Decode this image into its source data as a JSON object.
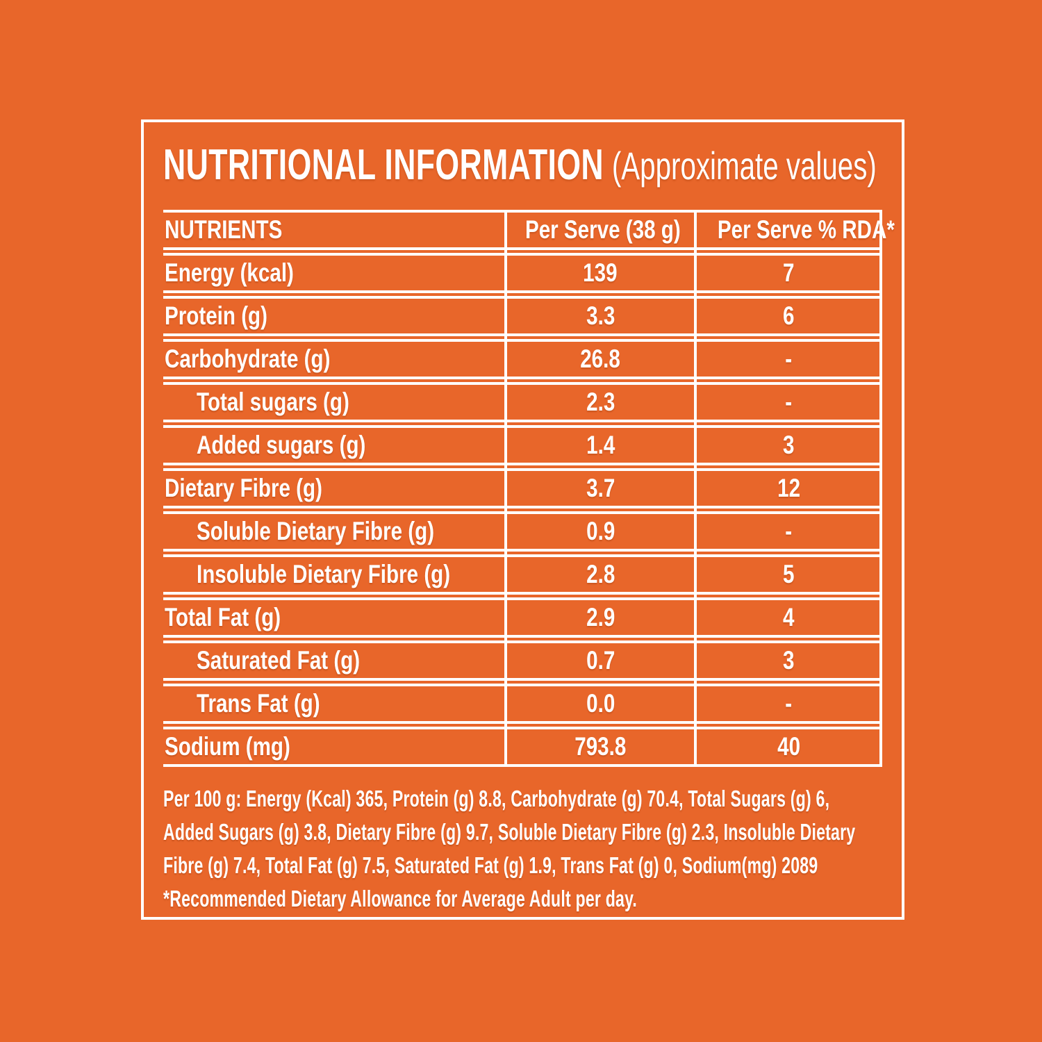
{
  "page": {
    "background_color": "#E8662A",
    "text_color": "#FFFFFF",
    "line_color": "#FFFFFF"
  },
  "title": {
    "main": "NUTRITIONAL INFORMATION",
    "sub": "(Approximate values)"
  },
  "table": {
    "headers": {
      "nutrients": "NUTRIENTS",
      "per_serve": "Per Serve (38 g)",
      "per_serve_rda": "Per Serve % RDA*"
    },
    "rows": [
      {
        "label": "Energy (kcal)",
        "per_serve": "139",
        "rda": "7",
        "indent": false
      },
      {
        "label": "Protein (g)",
        "per_serve": "3.3",
        "rda": "6",
        "indent": false
      },
      {
        "label": "Carbohydrate (g)",
        "per_serve": "26.8",
        "rda": "-",
        "indent": false
      },
      {
        "label": "Total sugars (g)",
        "per_serve": "2.3",
        "rda": "-",
        "indent": true
      },
      {
        "label": "Added sugars (g)",
        "per_serve": "1.4",
        "rda": "3",
        "indent": true
      },
      {
        "label": "Dietary Fibre (g)",
        "per_serve": "3.7",
        "rda": "12",
        "indent": false
      },
      {
        "label": "Soluble Dietary Fibre (g)",
        "per_serve": "0.9",
        "rda": "-",
        "indent": true
      },
      {
        "label": "Insoluble Dietary Fibre (g)",
        "per_serve": "2.8",
        "rda": "5",
        "indent": true
      },
      {
        "label": "Total Fat (g)",
        "per_serve": "2.9",
        "rda": "4",
        "indent": false
      },
      {
        "label": "Saturated Fat (g)",
        "per_serve": "0.7",
        "rda": "3",
        "indent": true
      },
      {
        "label": "Trans Fat (g)",
        "per_serve": "0.0",
        "rda": "-",
        "indent": true
      },
      {
        "label": "Sodium (mg)",
        "per_serve": "793.8",
        "rda": "40",
        "indent": false
      }
    ]
  },
  "footer": {
    "per_100g": "Per 100 g: Energy (Kcal) 365, Protein (g) 8.8, Carbohydrate (g) 70.4, Total Sugars (g) 6, Added Sugars (g) 3.8, Dietary Fibre (g) 9.7, Soluble Dietary Fibre (g) 2.3, Insoluble Dietary Fibre (g) 7.4, Total Fat (g) 7.5, Saturated Fat (g) 1.9, Trans Fat (g) 0, Sodium(mg) 2089",
    "rda_note": "*Recommended Dietary Allowance for Average Adult per day."
  }
}
